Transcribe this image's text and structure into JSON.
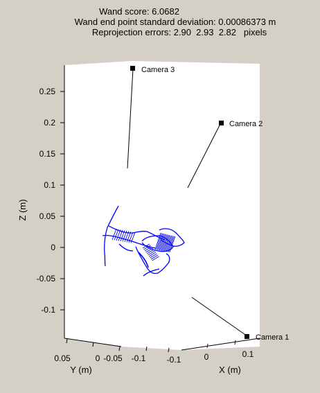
{
  "header": {
    "score_line": "Wand score: 6.0682",
    "std_line": "Wand end point standard deviation: 0.00086373 m",
    "reproj_line": "Reprojection errors: 2.90  2.93  2.82   pixels"
  },
  "colors": {
    "background": "#d4d0c8",
    "plot_face": "#ffffff",
    "trace": "#0000ff",
    "axis": "#000000"
  },
  "chart_data": {
    "type": "scatter",
    "title": "",
    "view": "3d",
    "zlabel": "Z (m)",
    "ylabel": "Y (m)",
    "xlabel": "X (m)",
    "z_ticks": [
      "0.25",
      "0.2",
      "0.15",
      "0.1",
      "0.05",
      "0",
      "-0.05",
      "-0.1"
    ],
    "z_tick_values": [
      0.25,
      0.2,
      0.15,
      0.1,
      0.05,
      0,
      -0.05,
      -0.1
    ],
    "zlim": [
      -0.15,
      0.28
    ],
    "y_ticks": [
      "0.05",
      "0",
      "-0.05",
      "-0.1"
    ],
    "x_ticks": [
      "-0.1",
      "0",
      "0.1"
    ],
    "cameras": [
      {
        "label": "Camera 3"
      },
      {
        "label": "Camera 2"
      },
      {
        "label": "Camera 1"
      }
    ],
    "wand_points": "dense blue trace of wand end-point pairs, z range approx -0.04 to 0.07 m"
  }
}
